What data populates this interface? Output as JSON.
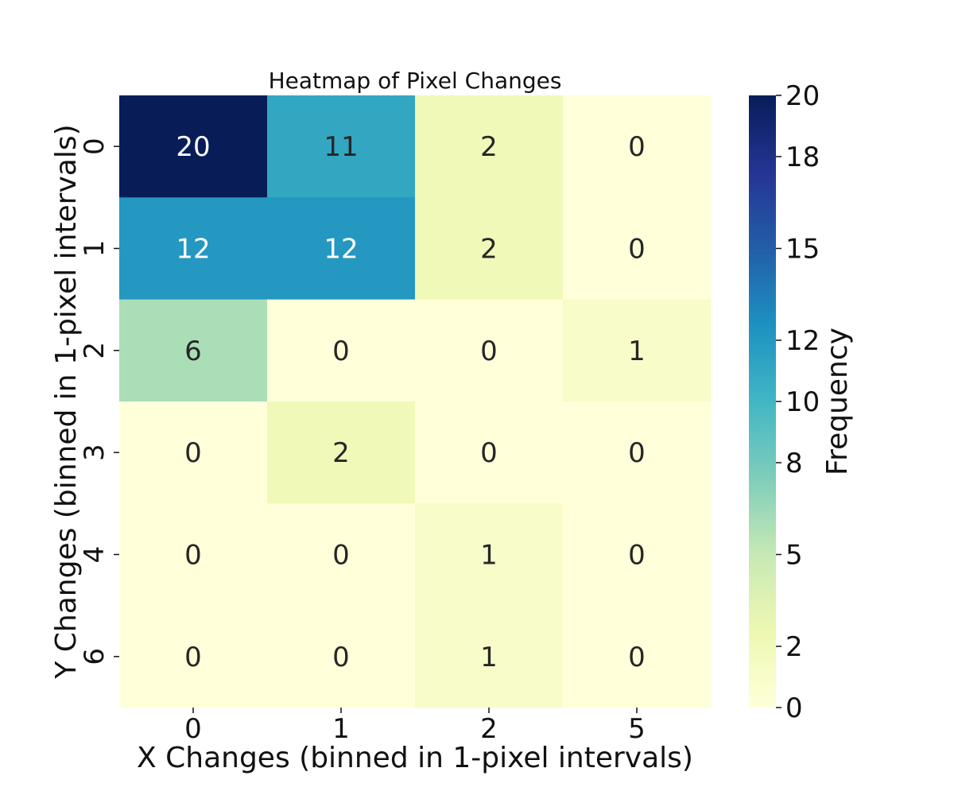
{
  "chart_data": {
    "type": "heatmap",
    "title": "Heatmap of Pixel Changes",
    "xlabel": "X Changes (binned in 1-pixel intervals)",
    "ylabel": "Y Changes (binned in 1-pixel intervals)",
    "x_categories": [
      "0",
      "1",
      "2",
      "5"
    ],
    "y_categories": [
      "0",
      "1",
      "2",
      "3",
      "4",
      "6"
    ],
    "values": [
      [
        20,
        11,
        2,
        0
      ],
      [
        12,
        12,
        2,
        0
      ],
      [
        6,
        0,
        0,
        1
      ],
      [
        0,
        2,
        0,
        0
      ],
      [
        0,
        0,
        1,
        0
      ],
      [
        0,
        0,
        1,
        0
      ]
    ],
    "colormap": "YlGnBu",
    "value_range": [
      0,
      20
    ],
    "annotations_shown": true,
    "colorbar": {
      "label": "Frequency",
      "ticks": [
        0,
        2,
        5,
        8,
        10,
        12,
        15,
        18,
        20
      ]
    },
    "colors": {
      "text_dark": "#262626",
      "text_light": "#ffffff"
    }
  }
}
